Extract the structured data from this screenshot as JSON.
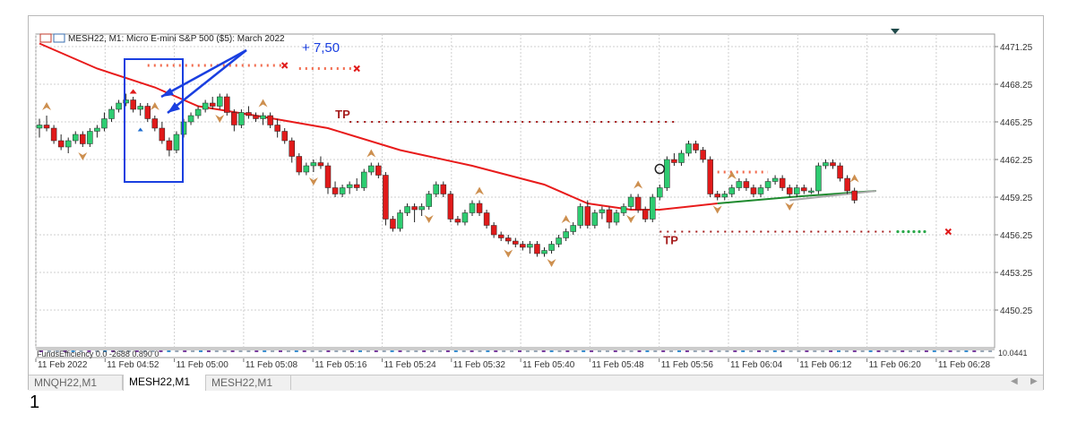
{
  "window": {
    "symbol_title": "MESH22, M1:  Micro E-mini S&P 500 ($5): March 2022",
    "annotation": "+ 7,50",
    "indicator_label": "FundsEfficiency 0.0 -2688 0.890 0",
    "sub_axis_label": "10.0441",
    "tp_label": "TP"
  },
  "tabs": [
    {
      "label": "MNQH22,M1",
      "active": false
    },
    {
      "label": "MESH22,M1",
      "active": true
    },
    {
      "label": "MESH22,M1",
      "active": false
    }
  ],
  "page_number": "1",
  "colors": {
    "bull": "#2ecc71",
    "bear": "#e01a1a",
    "ma": "#e81b1b",
    "tp": "#a51c1c",
    "arrow": "#cd8f4f",
    "annotation": "#1a3fe0",
    "grid": "#cfcfcf"
  },
  "chart_data": {
    "type": "candlestick",
    "title": "MESH22, M1:  Micro E-mini S&P 500 ($5): March 2022",
    "timeframe": "M1",
    "y_ticks": [
      "4471.25",
      "4468.25",
      "4465.25",
      "4462.25",
      "4459.25",
      "4456.25",
      "4453.25",
      "4450.25"
    ],
    "x_ticks": [
      "11 Feb 2022",
      "11 Feb 04:52",
      "11 Feb 05:00",
      "11 Feb 05:08",
      "11 Feb 05:16",
      "11 Feb 05:24",
      "11 Feb 05:32",
      "11 Feb 05:40",
      "11 Feb 05:48",
      "11 Feb 05:56",
      "11 Feb 06:04",
      "11 Feb 06:12",
      "11 Feb 06:20",
      "11 Feb 06:28"
    ],
    "ylim": [
      4447.25,
      4472.25
    ],
    "grid": true,
    "candles": [
      [
        4464.75,
        4465.5,
        4464.0,
        4465.0
      ],
      [
        4465.0,
        4465.75,
        4464.5,
        4464.75
      ],
      [
        4464.75,
        4465.0,
        4463.5,
        4463.75
      ],
      [
        4463.75,
        4464.25,
        4463.0,
        4463.25
      ],
      [
        4463.25,
        4464.0,
        4462.75,
        4463.75
      ],
      [
        4463.75,
        4464.5,
        4463.5,
        4464.25
      ],
      [
        4464.25,
        4464.5,
        4463.25,
        4463.5
      ],
      [
        4463.5,
        4464.75,
        4463.25,
        4464.5
      ],
      [
        4464.5,
        4465.0,
        4464.0,
        4464.75
      ],
      [
        4464.75,
        4466.0,
        4464.5,
        4465.5
      ],
      [
        4465.5,
        4466.5,
        4465.25,
        4466.25
      ],
      [
        4466.25,
        4467.0,
        4466.0,
        4466.75
      ],
      [
        4466.75,
        4467.5,
        4466.5,
        4467.0
      ],
      [
        4467.0,
        4467.25,
        4466.0,
        4466.25
      ],
      [
        4466.25,
        4466.75,
        4465.75,
        4466.5
      ],
      [
        4466.5,
        4466.75,
        4465.25,
        4465.5
      ],
      [
        4465.5,
        4465.75,
        4464.5,
        4464.75
      ],
      [
        4464.75,
        4465.25,
        4463.5,
        4463.75
      ],
      [
        4463.75,
        4464.0,
        4462.5,
        4463.0
      ],
      [
        4463.0,
        4464.5,
        4462.75,
        4464.25
      ],
      [
        4464.25,
        4465.5,
        4464.0,
        4465.25
      ],
      [
        4465.25,
        4466.0,
        4465.0,
        4465.75
      ],
      [
        4465.75,
        4466.5,
        4465.5,
        4466.25
      ],
      [
        4466.25,
        4467.0,
        4466.0,
        4466.75
      ],
      [
        4466.75,
        4467.25,
        4466.25,
        4466.5
      ],
      [
        4466.5,
        4467.5,
        4466.25,
        4467.25
      ],
      [
        4467.25,
        4467.5,
        4465.75,
        4466.0
      ],
      [
        4466.0,
        4466.25,
        4464.5,
        4465.0
      ],
      [
        4465.0,
        4466.25,
        4464.75,
        4466.0
      ],
      [
        4466.0,
        4466.5,
        4465.5,
        4465.75
      ],
      [
        4465.75,
        4466.0,
        4465.25,
        4465.5
      ],
      [
        4465.5,
        4466.0,
        4465.0,
        4465.75
      ],
      [
        4465.75,
        4466.0,
        4464.75,
        4465.0
      ],
      [
        4465.0,
        4465.5,
        4464.0,
        4464.5
      ],
      [
        4464.5,
        4464.75,
        4463.5,
        4463.75
      ],
      [
        4463.75,
        4464.0,
        4462.0,
        4462.5
      ],
      [
        4462.5,
        4462.75,
        4461.0,
        4461.25
      ],
      [
        4461.25,
        4462.0,
        4461.0,
        4461.75
      ],
      [
        4461.75,
        4462.25,
        4461.25,
        4462.0
      ],
      [
        4462.0,
        4462.5,
        4461.5,
        4461.75
      ],
      [
        4461.75,
        4462.0,
        4459.5,
        4460.0
      ],
      [
        4460.0,
        4460.5,
        4459.25,
        4459.5
      ],
      [
        4459.5,
        4460.25,
        4459.25,
        4460.0
      ],
      [
        4460.0,
        4460.5,
        4459.5,
        4460.25
      ],
      [
        4460.25,
        4460.75,
        4459.75,
        4460.0
      ],
      [
        4460.0,
        4461.5,
        4459.75,
        4461.25
      ],
      [
        4461.25,
        4462.0,
        4461.0,
        4461.75
      ],
      [
        4461.75,
        4462.0,
        4460.75,
        4461.0
      ],
      [
        4461.0,
        4461.25,
        4457.0,
        4457.5
      ],
      [
        4457.5,
        4457.75,
        4456.5,
        4456.75
      ],
      [
        4456.75,
        4458.25,
        4456.5,
        4458.0
      ],
      [
        4458.0,
        4458.75,
        4457.75,
        4458.5
      ],
      [
        4458.5,
        4458.75,
        4457.25,
        4458.25
      ],
      [
        4458.25,
        4458.75,
        4457.75,
        4458.5
      ],
      [
        4458.5,
        4459.75,
        4458.25,
        4459.5
      ],
      [
        4459.5,
        4460.5,
        4459.25,
        4460.25
      ],
      [
        4460.25,
        4460.5,
        4459.25,
        4459.5
      ],
      [
        4459.5,
        4459.75,
        4457.25,
        4457.5
      ],
      [
        4457.5,
        4457.75,
        4457.0,
        4457.25
      ],
      [
        4457.25,
        4458.25,
        4457.0,
        4458.0
      ],
      [
        4458.0,
        4459.0,
        4457.75,
        4458.75
      ],
      [
        4458.75,
        4459.0,
        4457.75,
        4458.0
      ],
      [
        4458.0,
        4458.25,
        4456.75,
        4457.0
      ],
      [
        4457.0,
        4457.25,
        4456.0,
        4456.25
      ],
      [
        4456.25,
        4456.5,
        4455.75,
        4456.0
      ],
      [
        4456.0,
        4456.25,
        4455.5,
        4455.75
      ],
      [
        4455.75,
        4456.0,
        4455.25,
        4455.5
      ],
      [
        4455.5,
        4455.75,
        4455.0,
        4455.25
      ],
      [
        4455.25,
        4455.75,
        4454.75,
        4455.5
      ],
      [
        4455.5,
        4455.75,
        4454.5,
        4454.75
      ],
      [
        4454.75,
        4455.25,
        4454.5,
        4455.0
      ],
      [
        4455.0,
        4455.75,
        4454.75,
        4455.5
      ],
      [
        4455.5,
        4456.25,
        4455.25,
        4456.0
      ],
      [
        4456.0,
        4456.75,
        4455.75,
        4456.5
      ],
      [
        4456.5,
        4457.25,
        4456.25,
        4457.0
      ],
      [
        4457.0,
        4458.75,
        4456.75,
        4458.5
      ],
      [
        4458.5,
        4459.0,
        4456.75,
        4457.0
      ],
      [
        4457.0,
        4458.25,
        4456.75,
        4458.0
      ],
      [
        4458.0,
        4458.5,
        4457.5,
        4458.25
      ],
      [
        4458.25,
        4458.5,
        4456.75,
        4457.25
      ],
      [
        4457.25,
        4458.25,
        4457.0,
        4458.0
      ],
      [
        4458.0,
        4458.75,
        4457.75,
        4458.5
      ],
      [
        4458.5,
        4459.5,
        4458.25,
        4459.25
      ],
      [
        4459.25,
        4459.5,
        4458.0,
        4458.25
      ],
      [
        4458.25,
        4458.5,
        4457.25,
        4457.5
      ],
      [
        4457.5,
        4459.5,
        4457.25,
        4459.25
      ],
      [
        4459.25,
        4460.25,
        4459.0,
        4460.0
      ],
      [
        4460.0,
        4462.5,
        4459.75,
        4462.25
      ],
      [
        4462.25,
        4462.75,
        4461.75,
        4462.0
      ],
      [
        4462.0,
        4463.0,
        4461.75,
        4462.75
      ],
      [
        4462.75,
        4463.75,
        4462.5,
        4463.5
      ],
      [
        4463.5,
        4463.75,
        4462.75,
        4463.0
      ],
      [
        4463.0,
        4463.25,
        4462.0,
        4462.25
      ],
      [
        4462.25,
        4462.5,
        4459.25,
        4459.5
      ],
      [
        4459.5,
        4459.75,
        4459.0,
        4459.25
      ],
      [
        4459.25,
        4459.75,
        4459.0,
        4459.5
      ],
      [
        4459.5,
        4460.25,
        4459.25,
        4460.0
      ],
      [
        4460.0,
        4460.75,
        4459.75,
        4460.5
      ],
      [
        4460.5,
        4460.75,
        4459.75,
        4460.0
      ],
      [
        4460.0,
        4460.25,
        4459.25,
        4459.5
      ],
      [
        4459.5,
        4460.25,
        4459.25,
        4460.0
      ],
      [
        4460.0,
        4460.75,
        4459.75,
        4460.5
      ],
      [
        4460.5,
        4461.0,
        4460.25,
        4460.75
      ],
      [
        4460.75,
        4461.0,
        4459.75,
        4460.0
      ],
      [
        4460.0,
        4460.25,
        4459.25,
        4459.5
      ],
      [
        4459.5,
        4460.25,
        4459.25,
        4460.0
      ],
      [
        4460.0,
        4460.25,
        4459.5,
        4459.75
      ],
      [
        4459.75,
        4460.0,
        4459.5,
        4459.75
      ],
      [
        4459.75,
        4462.0,
        4459.5,
        4461.75
      ],
      [
        4461.75,
        4462.25,
        4461.5,
        4462.0
      ],
      [
        4462.0,
        4462.25,
        4461.5,
        4461.75
      ],
      [
        4461.75,
        4462.0,
        4460.5,
        4460.75
      ],
      [
        4460.75,
        4461.0,
        4459.5,
        4459.75
      ],
      [
        4459.75,
        4460.0,
        4458.75,
        4459.0
      ]
    ],
    "moving_average": [
      [
        0,
        4471.5
      ],
      [
        8,
        4469.5
      ],
      [
        16,
        4468.0
      ],
      [
        22,
        4466.5
      ],
      [
        30,
        4465.75
      ],
      [
        40,
        4464.75
      ],
      [
        50,
        4463.0
      ],
      [
        60,
        4461.75
      ],
      [
        70,
        4460.25
      ],
      [
        76,
        4458.75
      ],
      [
        82,
        4458.25
      ],
      [
        86,
        4458.25
      ],
      [
        94,
        4458.75
      ],
      [
        104,
        4459.25
      ],
      [
        116,
        4459.75
      ]
    ],
    "tp_lines": [
      {
        "start": 43,
        "end": 88,
        "price": 4465.25,
        "color": "#a51c1c"
      },
      {
        "start": 86,
        "end": 118,
        "price": 4456.5,
        "color": "#a51c1c"
      }
    ]
  }
}
